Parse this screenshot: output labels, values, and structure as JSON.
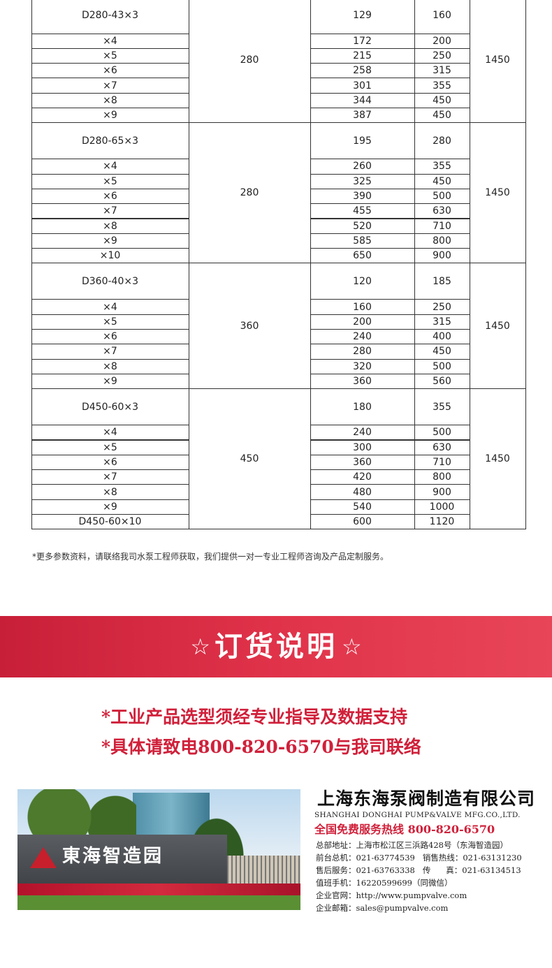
{
  "table": {
    "blocks": [
      {
        "models": [
          "D280-43×3",
          "×4",
          "×5",
          "×6",
          "×7",
          "×8",
          "×9"
        ],
        "col2": "280",
        "col3": [
          "129",
          "172",
          "215",
          "258",
          "301",
          "344",
          "387"
        ],
        "col4": [
          "160",
          "200",
          "250",
          "315",
          "355",
          "450",
          "450"
        ],
        "col5": "1450"
      },
      {
        "models": [
          "D280-65×3",
          "×4",
          "×5",
          "×6",
          "×7",
          "×8",
          "×9",
          "×10"
        ],
        "col2": "280",
        "col3": [
          "195",
          "260",
          "325",
          "390",
          "455",
          "520",
          "585",
          "650"
        ],
        "col4": [
          "280",
          "355",
          "450",
          "500",
          "630",
          "710",
          "800",
          "900"
        ],
        "col5": "1450"
      },
      {
        "models": [
          "D360-40×3",
          "×4",
          "×5",
          "×6",
          "×7",
          "×8",
          "×9"
        ],
        "col2": "360",
        "col3": [
          "120",
          "160",
          "200",
          "240",
          "280",
          "320",
          "360"
        ],
        "col4": [
          "185",
          "250",
          "315",
          "400",
          "450",
          "500",
          "560"
        ],
        "col5": "1450"
      },
      {
        "models": [
          "D450-60×3",
          "×4",
          "×5",
          "×6",
          "×7",
          "×8",
          "×9",
          "D450-60×10"
        ],
        "col2": "450",
        "col3": [
          "180",
          "240",
          "300",
          "360",
          "420",
          "480",
          "540",
          "600"
        ],
        "col4": [
          "355",
          "500",
          "630",
          "710",
          "800",
          "900",
          "1000",
          "1120"
        ],
        "col5": "1450"
      }
    ]
  },
  "note": "*更多参数资料，请联络我司水泵工程师获取，我们提供一对一专业工程师咨询及产品定制服务。",
  "banner": {
    "title": "订货说明",
    "star": "☆"
  },
  "order_lines": [
    "*工业产品选型须经专业指导及数据支持",
    "*具体请致电800-820-6570与我司联络"
  ],
  "photo": {
    "sign": "東海智造园"
  },
  "company": {
    "name_cn": "上海东海泵阀制造有限公司",
    "name_en": "SHANGHAI DONGHAI PUMP&VALVE MFG.CO.,LTD.",
    "hotline": "全国免费服务热线  800-820-6570",
    "lines": [
      "总部地址：上海市松江区三浜路428号（东海智造园）",
      "前台总机：021-63774539   销售热线：021-63131230",
      "售后服务：021-63763338   传      真：021-63134513",
      "值班手机：16220599699（同微信）",
      "企业官网：http://www.pumpvalve.com",
      "企业邮箱：sales@pumpvalve.com"
    ]
  },
  "colors": {
    "accent": "#d0203a",
    "banner": "#e0334a"
  }
}
